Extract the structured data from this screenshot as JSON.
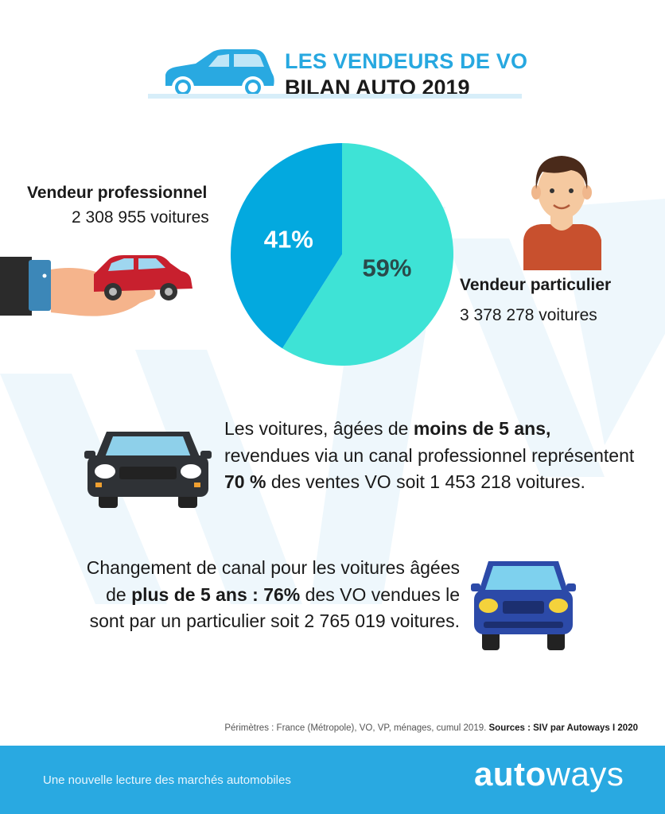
{
  "header": {
    "title_line1": "LES VENDEURS DE VO",
    "title_line2": "BILAN AUTO 2019"
  },
  "chart_data": {
    "type": "pie",
    "slices": [
      {
        "label": "Vendeur particulier",
        "value": 59,
        "value_label": "59%",
        "count": "3 378 278 voitures",
        "color": "#3ee3d6"
      },
      {
        "label": "Vendeur professionnel",
        "value": 41,
        "value_label": "41%",
        "count": "2 308 955 voitures",
        "color": "#03a9df"
      }
    ]
  },
  "legend": {
    "pro_label": "Vendeur professionnel",
    "pro_count": "2 308 955 voitures",
    "part_label": "Vendeur particulier",
    "part_count": "3 378 278 voitures"
  },
  "paragraph1": {
    "t1": "Les voitures, âgées de ",
    "b1": "moins de 5 ans,",
    "t2": " revendues via un canal professionnel représentent ",
    "b2": "70 %",
    "t3": " des ventes VO soit 1 453 218 voitures."
  },
  "paragraph2": {
    "t1": "Changement de canal pour les voitures âgées de ",
    "b1": "plus de 5 ans : 76%",
    "t2": " des VO vendues le sont par un particulier soit 2 765 019 voitures."
  },
  "source": {
    "text": "Périmètres : France (Métropole), VO, VP, ménages, cumul 2019. ",
    "bold": "Sources : SIV par Autoways  I  2020"
  },
  "footer": {
    "tagline": "Une nouvelle lecture des marchés automobiles",
    "logo_bold": "auto",
    "logo_light": "ways"
  },
  "colors": {
    "accent": "#27a8e0",
    "pie_pro": "#03a9df",
    "pie_particulier": "#3ee3d6",
    "footer_bg": "#29a9e1"
  },
  "icons": [
    "car-header-icon",
    "hand-with-car-icon",
    "person-avatar-icon",
    "car-front-dark-icon",
    "car-front-blue-icon"
  ]
}
